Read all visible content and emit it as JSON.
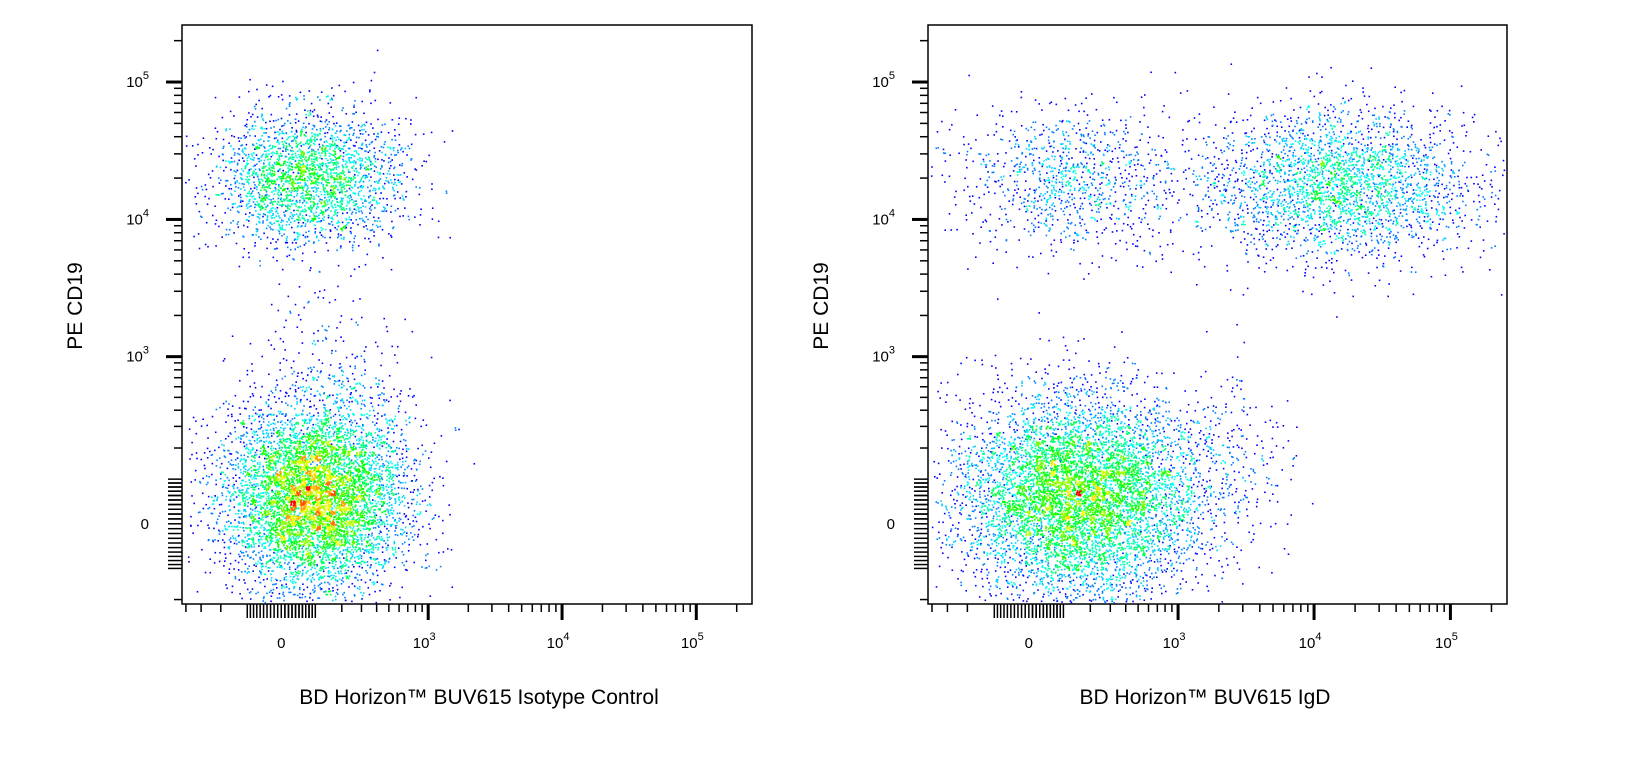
{
  "chart_data": [
    {
      "type": "scatter",
      "subtype": "flow-cytometry-density-dot-plot",
      "xlabel": "BD Horizon™ BUV615 Isotype Control",
      "ylabel": "PE  CD19",
      "x_scale": "biexponential",
      "y_scale": "biexponential",
      "xlim": [
        -430,
        260000
      ],
      "ylim": [
        -218,
        260000
      ],
      "x_ticks": [
        {
          "value": 0,
          "label": "0"
        },
        {
          "value": 1000,
          "label": "10",
          "exp": "3"
        },
        {
          "value": 10000,
          "label": "10",
          "exp": "4"
        },
        {
          "value": 100000,
          "label": "10",
          "exp": "5"
        }
      ],
      "y_ticks": [
        {
          "value": 0,
          "label": "0"
        },
        {
          "value": 1000,
          "label": "10",
          "exp": "3"
        },
        {
          "value": 10000,
          "label": "10",
          "exp": "4"
        },
        {
          "value": 100000,
          "label": "10",
          "exp": "5"
        }
      ],
      "color_map": "jet density (blue low → red high)",
      "populations": [
        {
          "x_center": 100,
          "y_center": 60,
          "x_range": [
            -250,
            500
          ],
          "y_range": [
            -180,
            400
          ],
          "events": 6500
        },
        {
          "x_center": 100,
          "y_center": 900,
          "x_range": [
            -150,
            450
          ],
          "y_range": [
            300,
            4000
          ],
          "events": 150
        },
        {
          "x_center": 80,
          "y_center": 20000,
          "x_range": [
            -250,
            600
          ],
          "y_range": [
            5000,
            50000
          ],
          "events": 2500
        }
      ]
    },
    {
      "type": "scatter",
      "subtype": "flow-cytometry-density-dot-plot",
      "xlabel": "BD Horizon™ BUV615 IgD",
      "ylabel": "PE  CD19",
      "x_scale": "biexponential",
      "y_scale": "biexponential",
      "xlim": [
        -430,
        260000
      ],
      "ylim": [
        -218,
        260000
      ],
      "x_ticks": [
        {
          "value": 0,
          "label": "0"
        },
        {
          "value": 1000,
          "label": "10",
          "exp": "3"
        },
        {
          "value": 10000,
          "label": "10",
          "exp": "4"
        },
        {
          "value": 100000,
          "label": "10",
          "exp": "5"
        }
      ],
      "y_ticks": [
        {
          "value": 0,
          "label": "0"
        },
        {
          "value": 1000,
          "label": "10",
          "exp": "3"
        },
        {
          "value": 10000,
          "label": "10",
          "exp": "4"
        },
        {
          "value": 100000,
          "label": "10",
          "exp": "5"
        }
      ],
      "color_map": "jet density (blue low → red high)",
      "populations": [
        {
          "x_center": 150,
          "y_center": 60,
          "x_range": [
            -250,
            1200
          ],
          "y_range": [
            -180,
            500
          ],
          "events": 7000
        },
        {
          "x_center": 2000,
          "y_center": 150,
          "x_range": [
            500,
            6000
          ],
          "y_range": [
            0,
            900
          ],
          "events": 250
        },
        {
          "x_center": 120,
          "y_center": 20000,
          "x_range": [
            -350,
            700
          ],
          "y_range": [
            4000,
            45000
          ],
          "events": 1000
        },
        {
          "x_center": 15000,
          "y_center": 18000,
          "x_range": [
            1000,
            100000
          ],
          "y_range": [
            4000,
            45000
          ],
          "events": 2800
        }
      ]
    }
  ]
}
